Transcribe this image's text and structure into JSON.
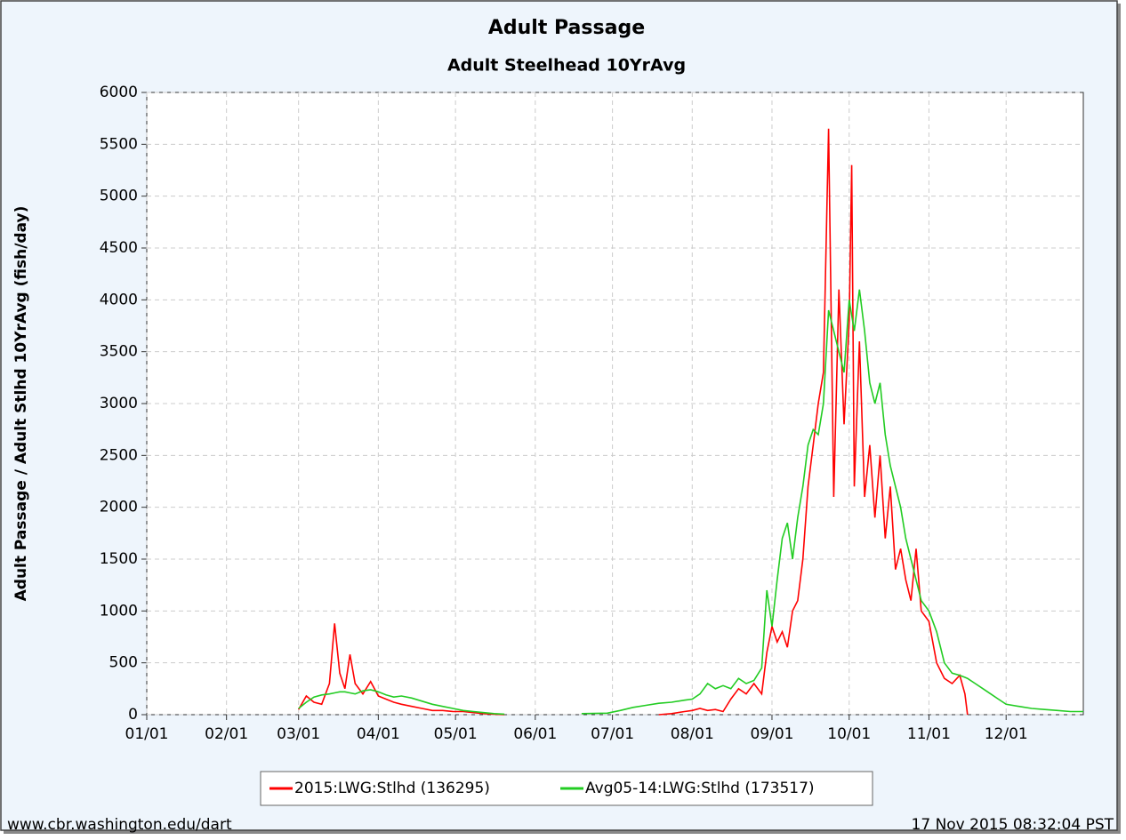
{
  "chart_data": {
    "type": "line",
    "title": "Adult Passage",
    "subtitle": "Adult Steelhead 10YrAvg",
    "y_label": "Adult Passage / Adult Stlhd 10YrAvg (fish/day)",
    "footer_left": "www.cbr.washington.edu/dart",
    "footer_right": "17 Nov 2015 08:32:04 PST",
    "x": [
      60,
      63,
      66,
      69,
      72,
      74,
      76,
      78,
      80,
      82,
      85,
      88,
      91,
      94,
      97,
      100,
      104,
      108,
      112,
      116,
      120,
      124,
      128,
      132,
      136,
      140,
      155,
      170,
      180,
      185,
      190,
      195,
      200,
      205,
      210,
      213,
      216,
      219,
      222,
      225,
      228,
      231,
      234,
      237,
      240,
      242,
      244,
      246,
      248,
      250,
      252,
      254,
      256,
      258,
      260,
      262,
      264,
      266,
      268,
      270,
      272,
      274,
      275,
      276,
      278,
      280,
      282,
      284,
      286,
      288,
      290,
      292,
      294,
      296,
      298,
      300,
      302,
      305,
      308,
      311,
      314,
      317,
      319,
      320,
      323,
      326,
      329,
      332,
      335,
      340,
      345,
      350,
      355,
      360,
      365
    ],
    "series": [
      {
        "name": "2015:LWG:Stlhd (136295)",
        "color": "#ff0000",
        "values": [
          50,
          180,
          120,
          100,
          300,
          880,
          400,
          250,
          580,
          300,
          200,
          320,
          180,
          150,
          120,
          100,
          80,
          60,
          40,
          40,
          30,
          30,
          20,
          10,
          5,
          0,
          null,
          null,
          null,
          null,
          null,
          null,
          0,
          10,
          30,
          40,
          60,
          40,
          50,
          30,
          150,
          250,
          200,
          300,
          200,
          600,
          850,
          700,
          800,
          650,
          1000,
          1100,
          1500,
          2200,
          2600,
          3000,
          3300,
          5650,
          2100,
          4100,
          2800,
          3800,
          5300,
          2200,
          3600,
          2100,
          2600,
          1900,
          2500,
          1700,
          2200,
          1400,
          1600,
          1300,
          1100,
          1600,
          1000,
          900,
          500,
          350,
          300,
          380,
          200,
          0,
          null,
          null,
          null,
          null,
          null,
          null,
          null,
          null,
          null,
          null,
          null
        ]
      },
      {
        "name": "Avg05-14:LWG:Stlhd (173517)",
        "color": "#22cc22",
        "values": [
          60,
          120,
          170,
          190,
          200,
          210,
          220,
          220,
          210,
          200,
          230,
          240,
          220,
          190,
          170,
          180,
          160,
          130,
          100,
          80,
          60,
          40,
          30,
          20,
          10,
          5,
          null,
          10,
          15,
          40,
          70,
          90,
          110,
          120,
          140,
          150,
          200,
          300,
          250,
          280,
          250,
          350,
          300,
          330,
          450,
          1200,
          850,
          1300,
          1700,
          1850,
          1500,
          1900,
          2200,
          2600,
          2750,
          2700,
          3000,
          3900,
          3700,
          3500,
          3300,
          4000,
          3850,
          3700,
          4100,
          3700,
          3200,
          3000,
          3200,
          2700,
          2400,
          2200,
          2000,
          1700,
          1500,
          1300,
          1100,
          1000,
          800,
          500,
          400,
          380,
          360,
          350,
          300,
          250,
          200,
          150,
          100,
          80,
          60,
          50,
          40,
          30,
          30
        ]
      }
    ],
    "xlim": [
      1,
      365
    ],
    "xticks": [
      {
        "value": 1,
        "label": "01/01"
      },
      {
        "value": 32,
        "label": "02/01"
      },
      {
        "value": 60,
        "label": "03/01"
      },
      {
        "value": 91,
        "label": "04/01"
      },
      {
        "value": 121,
        "label": "05/01"
      },
      {
        "value": 152,
        "label": "06/01"
      },
      {
        "value": 182,
        "label": "07/01"
      },
      {
        "value": 213,
        "label": "08/01"
      },
      {
        "value": 244,
        "label": "09/01"
      },
      {
        "value": 274,
        "label": "10/01"
      },
      {
        "value": 305,
        "label": "11/01"
      },
      {
        "value": 335,
        "label": "12/01"
      }
    ],
    "ylim": [
      0,
      6000
    ],
    "yticks": [
      0,
      500,
      1000,
      1500,
      2000,
      2500,
      3000,
      3500,
      4000,
      4500,
      5000,
      5500,
      6000
    ],
    "grid": true
  }
}
